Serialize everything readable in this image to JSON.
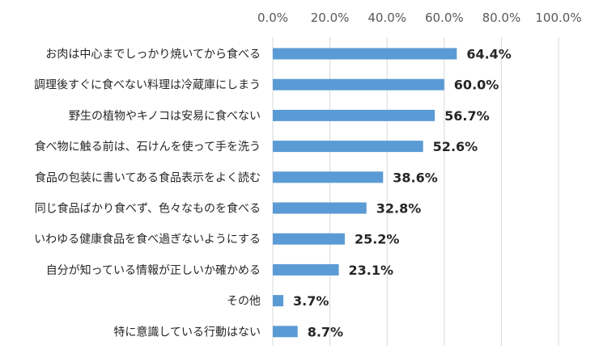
{
  "chart_data": {
    "type": "bar",
    "orientation": "horizontal",
    "title": "",
    "xlabel": "",
    "ylabel": "",
    "xlim": [
      0,
      100
    ],
    "x_ticks": [
      "0.0%",
      "20.0%",
      "40.0%",
      "60.0%",
      "80.0%",
      "100.0%"
    ],
    "x_axis_position": "top",
    "grid": true,
    "legend": "none",
    "bar_color": "#5b9bd5",
    "categories": [
      "お肉は中心までしっかり焼いてから食べる",
      "調理後すぐに食べない料理は冷蔵庫にしまう",
      "野生の植物やキノコは安易に食べない",
      "食べ物に触る前は、石けんを使って手を洗う",
      "食品の包装に書いてある食品表示をよく読む",
      "同じ食品ばかり食べず、色々なものを食べる",
      "いわゆる健康食品を食べ過ぎないようにする",
      "自分が知っている情報が正しいか確かめる",
      "その他",
      "特に意識している行動はない"
    ],
    "values": [
      64.4,
      60.0,
      56.7,
      52.6,
      38.6,
      32.8,
      25.2,
      23.1,
      3.7,
      8.7
    ],
    "value_labels": [
      "64.4%",
      "60.0%",
      "56.7%",
      "52.6%",
      "38.6%",
      "32.8%",
      "25.2%",
      "23.1%",
      "3.7%",
      "8.7%"
    ]
  }
}
